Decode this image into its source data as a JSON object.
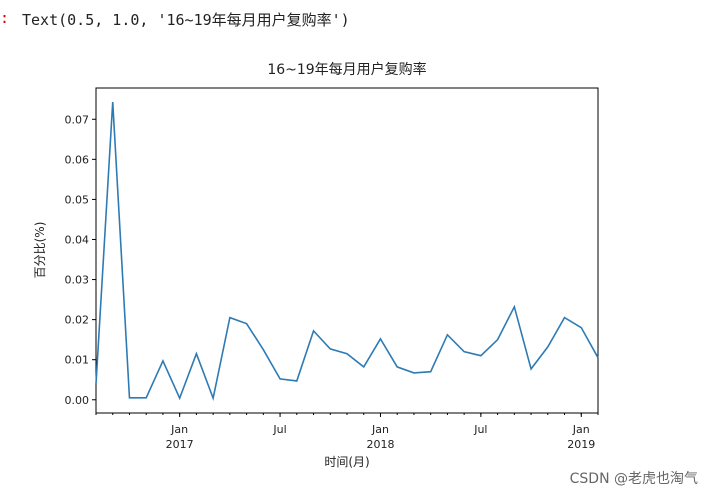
{
  "output": {
    "prompt": ":",
    "text": "Text(0.5, 1.0, '16~19年每月用户复购率')"
  },
  "chart_data": {
    "type": "line",
    "title": "16~19年每月用户复购率",
    "x_label": "时间(月)",
    "y_label": "百分比(%)",
    "x": [
      "2016-08",
      "2016-09",
      "2016-10",
      "2016-11",
      "2016-12",
      "2017-01",
      "2017-02",
      "2017-03",
      "2017-04",
      "2017-05",
      "2017-06",
      "2017-07",
      "2017-08",
      "2017-09",
      "2017-10",
      "2017-11",
      "2017-12",
      "2018-01",
      "2018-02",
      "2018-03",
      "2018-04",
      "2018-05",
      "2018-06",
      "2018-07",
      "2018-08",
      "2018-09",
      "2018-10",
      "2018-11",
      "2018-12",
      "2019-01",
      "2019-02"
    ],
    "series": [
      {
        "color": "#2e7bb4",
        "values": [
          0.004,
          0.0743,
          0.0005,
          0.0005,
          0.0097,
          0.0004,
          0.0115,
          0.0004,
          0.0205,
          0.019,
          0.0125,
          0.0052,
          0.0047,
          0.0172,
          0.0127,
          0.0115,
          0.0082,
          0.0152,
          0.0082,
          0.0067,
          0.007,
          0.0162,
          0.012,
          0.011,
          0.015,
          0.0232,
          0.0077,
          0.0132,
          0.0205,
          0.018,
          0.0105
        ]
      }
    ],
    "xlim": [
      "2016-08",
      "2019-02"
    ],
    "xticks": [
      {
        "value": "2017-01",
        "label": "Jan",
        "sublabel": "2017"
      },
      {
        "value": "2017-07",
        "label": "Jul"
      },
      {
        "value": "2018-01",
        "label": "Jan",
        "sublabel": "2018"
      },
      {
        "value": "2018-07",
        "label": "Jul"
      },
      {
        "value": "2019-01",
        "label": "Jan",
        "sublabel": "2019"
      }
    ],
    "ylim": [
      -0.0033,
      0.0778
    ],
    "yticks": [
      {
        "value": 0,
        "label": "0.00"
      },
      {
        "value": 0.01,
        "label": "0.01"
      },
      {
        "value": 0.02,
        "label": "0.02"
      },
      {
        "value": 0.03,
        "label": "0.03"
      },
      {
        "value": 0.04,
        "label": "0.04"
      },
      {
        "value": 0.05,
        "label": "0.05"
      },
      {
        "value": 0.06,
        "label": "0.06"
      },
      {
        "value": 0.07,
        "label": "0.07"
      }
    ],
    "grid": false
  },
  "watermark": "CSDN @老虎也淘气"
}
